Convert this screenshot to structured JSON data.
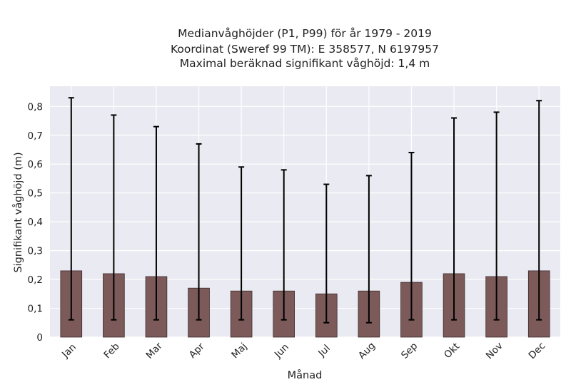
{
  "chart_data": {
    "type": "bar",
    "title_lines": [
      "Medianvåghöjder (P1, P99) för år 1979 - 2019",
      "Koordinat (Sweref 99 TM): E 358577, N 6197957",
      "Maximal beräknad signifikant våghöjd: 1,4 m"
    ],
    "xlabel": "Månad",
    "ylabel": "Signifikant våghöjd (m)",
    "categories": [
      "Jan",
      "Feb",
      "Mar",
      "Apr",
      "Maj",
      "Jun",
      "Jul",
      "Aug",
      "Sep",
      "Okt",
      "Nov",
      "Dec"
    ],
    "values": [
      0.23,
      0.22,
      0.21,
      0.17,
      0.16,
      0.16,
      0.15,
      0.16,
      0.19,
      0.22,
      0.21,
      0.23
    ],
    "error_low": [
      0.06,
      0.06,
      0.06,
      0.06,
      0.06,
      0.06,
      0.05,
      0.05,
      0.06,
      0.06,
      0.06,
      0.06
    ],
    "error_high": [
      0.83,
      0.77,
      0.73,
      0.67,
      0.59,
      0.58,
      0.53,
      0.56,
      0.64,
      0.76,
      0.78,
      0.82
    ],
    "ylim": [
      0,
      0.87
    ],
    "yticks": [
      0,
      0.1,
      0.2,
      0.3,
      0.4,
      0.5,
      0.6,
      0.7,
      0.8
    ],
    "ytick_labels": [
      "0",
      "0,1",
      "0,2",
      "0,3",
      "0,4",
      "0,5",
      "0,6",
      "0,7",
      "0,8"
    ],
    "grid": true,
    "colors": {
      "bar_fill": "#7d5a5a",
      "bar_edge": "#3a2a2a",
      "error_bar": "#000000",
      "plot_background": "#eaeaf2",
      "grid": "#ffffff"
    }
  }
}
